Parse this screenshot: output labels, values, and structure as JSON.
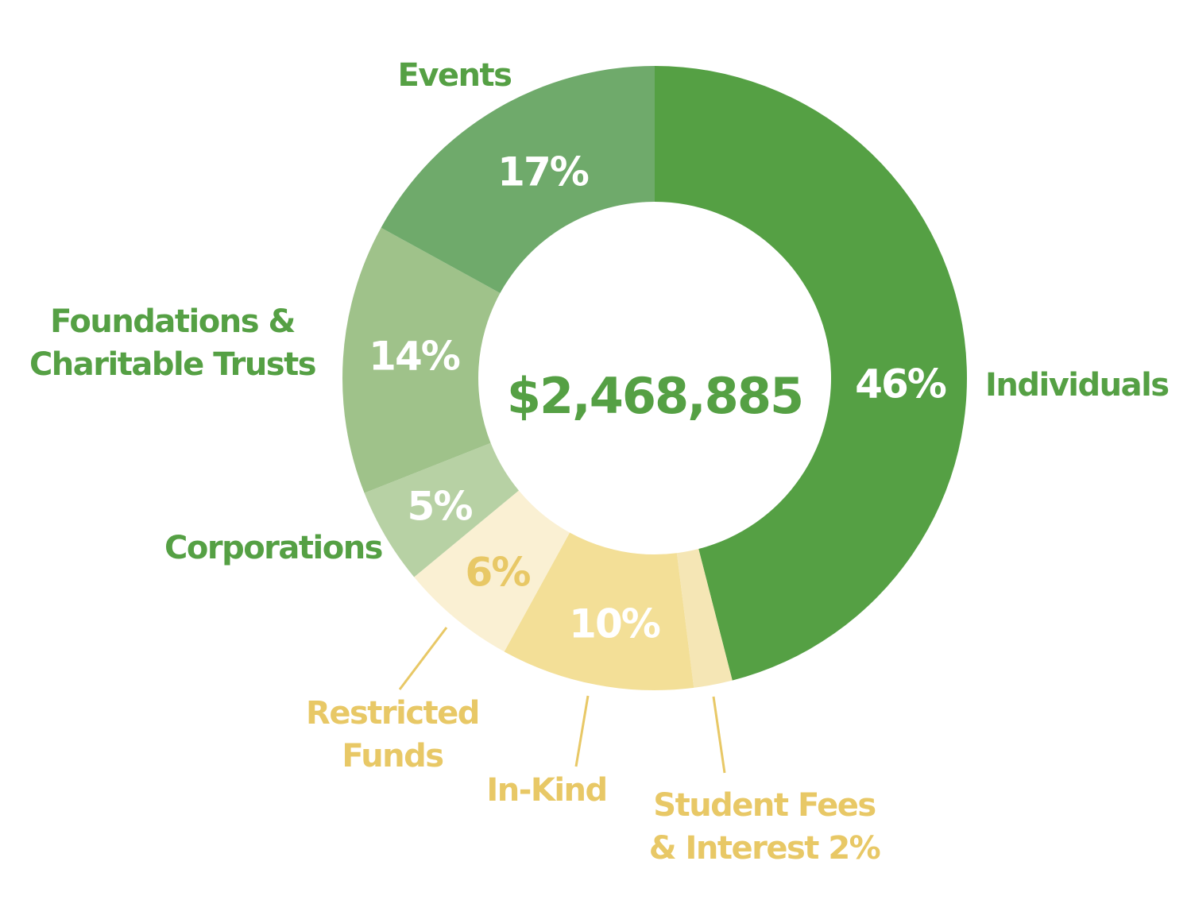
{
  "chart_data": {
    "type": "donut",
    "title": "",
    "total": "$2,468,885",
    "slices": [
      {
        "name": "Individuals",
        "label_lines": [
          "Individuals"
        ],
        "value": 46,
        "pct_label": "46%",
        "color": "#55a044",
        "pct_color": "#ffffff",
        "label_color": "#55a044"
      },
      {
        "name": "Student Fees & Interest",
        "label_lines": [
          "Student Fees",
          "& Interest  2%"
        ],
        "value": 2,
        "pct_label": "",
        "color": "#f5e6b5",
        "pct_color": "#e8c866",
        "label_color": "#e8c866"
      },
      {
        "name": "In-Kind",
        "label_lines": [
          "In-Kind"
        ],
        "value": 10,
        "pct_label": "10%",
        "color": "#f3df97",
        "pct_color": "#ffffff",
        "label_color": "#e8c866"
      },
      {
        "name": "Restricted Funds",
        "label_lines": [
          "Restricted",
          "Funds"
        ],
        "value": 6,
        "pct_label": "6%",
        "color": "#faf0d3",
        "pct_color": "#e8c866",
        "label_color": "#e8c866"
      },
      {
        "name": "Corporations",
        "label_lines": [
          "Corporations"
        ],
        "value": 5,
        "pct_label": "5%",
        "color": "#b7d1a4",
        "pct_color": "#ffffff",
        "label_color": "#55a044"
      },
      {
        "name": "Foundations & Charitable Trusts",
        "label_lines": [
          "Foundations &",
          "Charitable Trusts"
        ],
        "value": 14,
        "pct_label": "14%",
        "color": "#9fc28a",
        "pct_color": "#ffffff",
        "label_color": "#55a044"
      },
      {
        "name": "Events",
        "label_lines": [
          "Events"
        ],
        "value": 17,
        "pct_label": "17%",
        "color": "#6faa6b",
        "pct_color": "#ffffff",
        "label_color": "#55a044"
      }
    ],
    "total_color": "#55a044",
    "leader_color": "#e8c866"
  }
}
